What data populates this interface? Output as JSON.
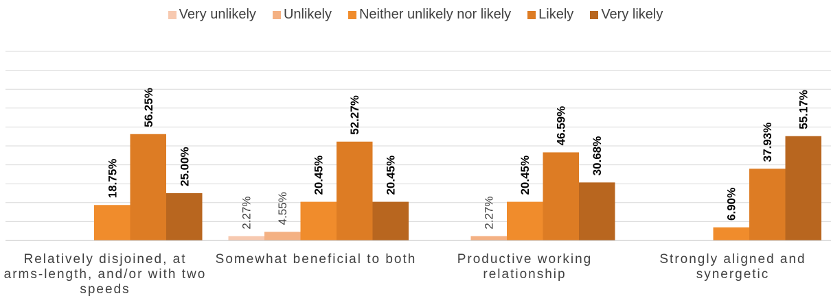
{
  "chart_data": {
    "type": "bar",
    "categories": [
      "Relatively disjoined, at arms-length, and/or with two speeds",
      "Somewhat beneficial to both",
      "Productive working relationship",
      "Strongly aligned and synergetic"
    ],
    "series": [
      {
        "name": "Very unlikely",
        "color": "#f7c9b0",
        "values": [
          null,
          2.27,
          null,
          null
        ],
        "labels": [
          null,
          "2.27%",
          null,
          null
        ],
        "label_bold": false
      },
      {
        "name": "Unlikely",
        "color": "#f4b183",
        "values": [
          null,
          4.55,
          2.27,
          null
        ],
        "labels": [
          null,
          "4.55%",
          "2.27%",
          null
        ],
        "label_bold": false
      },
      {
        "name": "Neither unlikely nor likely",
        "color": "#f08c2c",
        "values": [
          18.75,
          20.45,
          20.45,
          6.9
        ],
        "labels": [
          "18.75%",
          "20.45%",
          "20.45%",
          "6.90%"
        ],
        "label_bold": true
      },
      {
        "name": "Likely",
        "color": "#dd7c24",
        "values": [
          56.25,
          52.27,
          46.59,
          37.93
        ],
        "labels": [
          "56.25%",
          "52.27%",
          "46.59%",
          "37.93%"
        ],
        "label_bold": true
      },
      {
        "name": "Very likely",
        "color": "#b8661f",
        "values": [
          25.0,
          20.45,
          30.68,
          55.17
        ],
        "labels": [
          "25.00%",
          "20.45%",
          "30.68%",
          "55.17%"
        ],
        "label_bold": true
      }
    ],
    "ylim": [
      0,
      100
    ],
    "grid": true,
    "legend_position": "top",
    "title": "",
    "xlabel": "",
    "ylabel": ""
  }
}
